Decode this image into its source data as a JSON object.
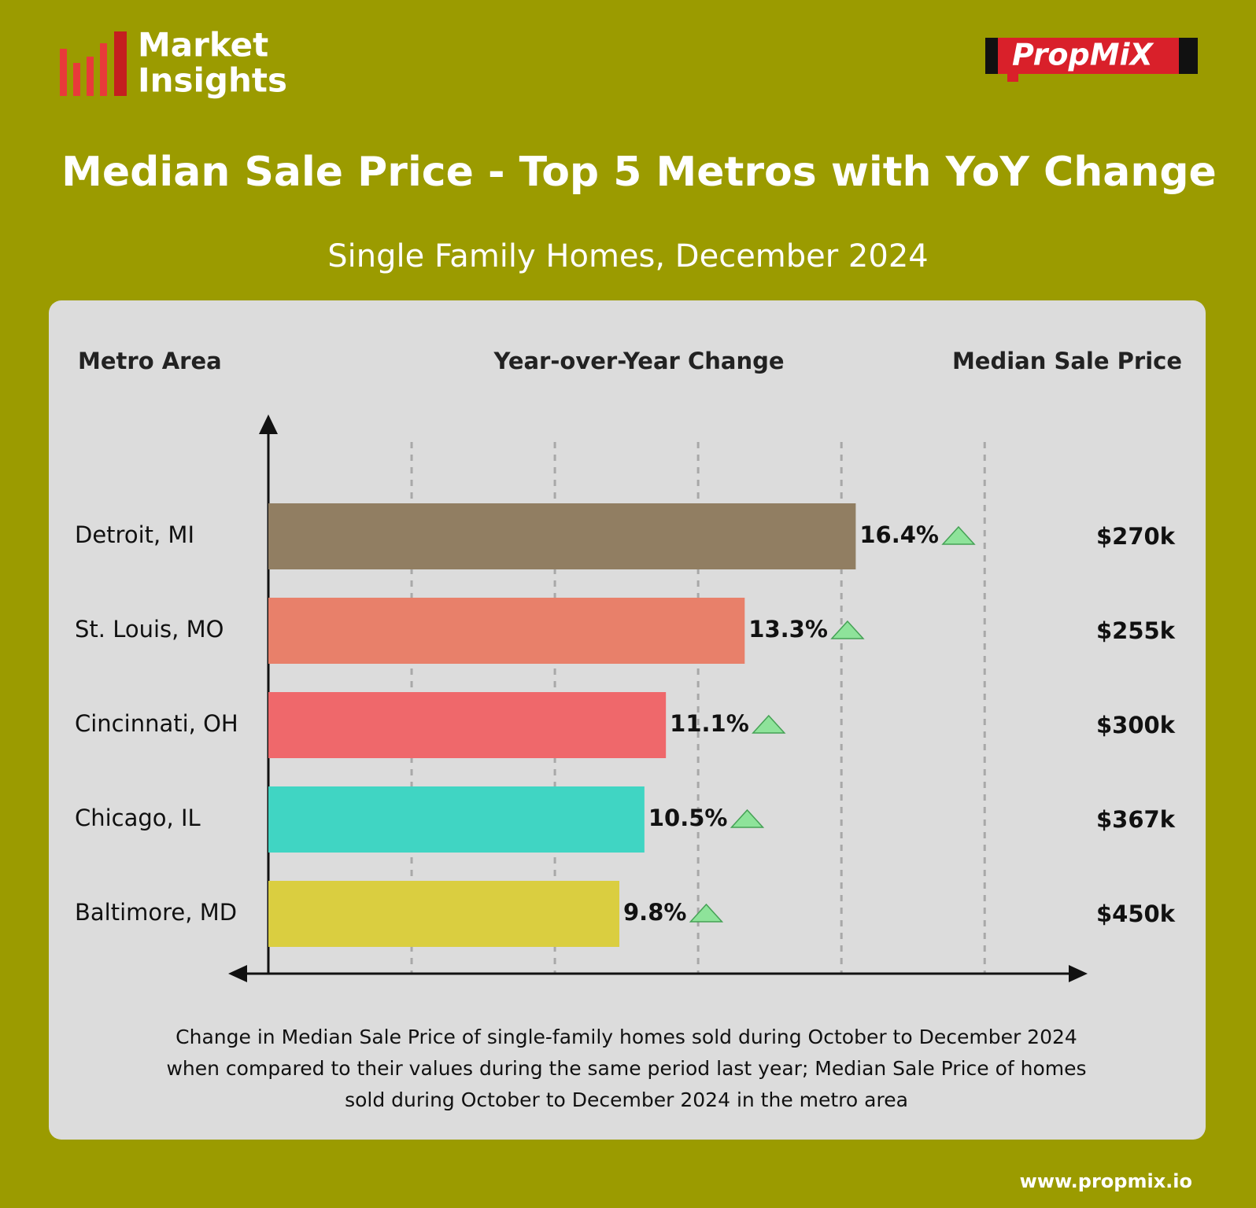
{
  "header": {
    "brand": [
      "Market",
      "Insights"
    ],
    "logo": "PropMiX"
  },
  "chart_data": {
    "type": "bar",
    "orientation": "horizontal",
    "title": "Median Sale Price - Top 5 Metros with YoY Change",
    "subtitle": "Single Family Homes, December 2024",
    "columns": [
      "Metro Area",
      "Year-over-Year Change",
      "Median Sale Price"
    ],
    "categories": [
      "Detroit, MI",
      "St. Louis, MO",
      "Cincinnati, OH",
      "Chicago, IL",
      "Baltimore, MD"
    ],
    "values": [
      16.4,
      13.3,
      11.1,
      10.5,
      9.8
    ],
    "value_labels": [
      "16.4%",
      "13.3%",
      "11.1%",
      "10.5%",
      "9.8%"
    ],
    "colors": [
      "#917e62",
      "#e8806a",
      "#ef686b",
      "#40d5c3",
      "#dace40"
    ],
    "median_sale_price": [
      "$270k",
      "$255k",
      "$300k",
      "$367k",
      "$450k"
    ],
    "xlim": [
      0,
      22.5
    ],
    "xticks": [
      4,
      8,
      12,
      16,
      20
    ],
    "grid": true,
    "footnote": [
      "Change in Median Sale Price of single-family homes sold during October to December 2024",
      "when compared to their values during the same period last year; Median Sale Price of homes",
      "sold during October to December 2024 in the metro area"
    ]
  },
  "footer": {
    "url": "www.propmix.io"
  }
}
